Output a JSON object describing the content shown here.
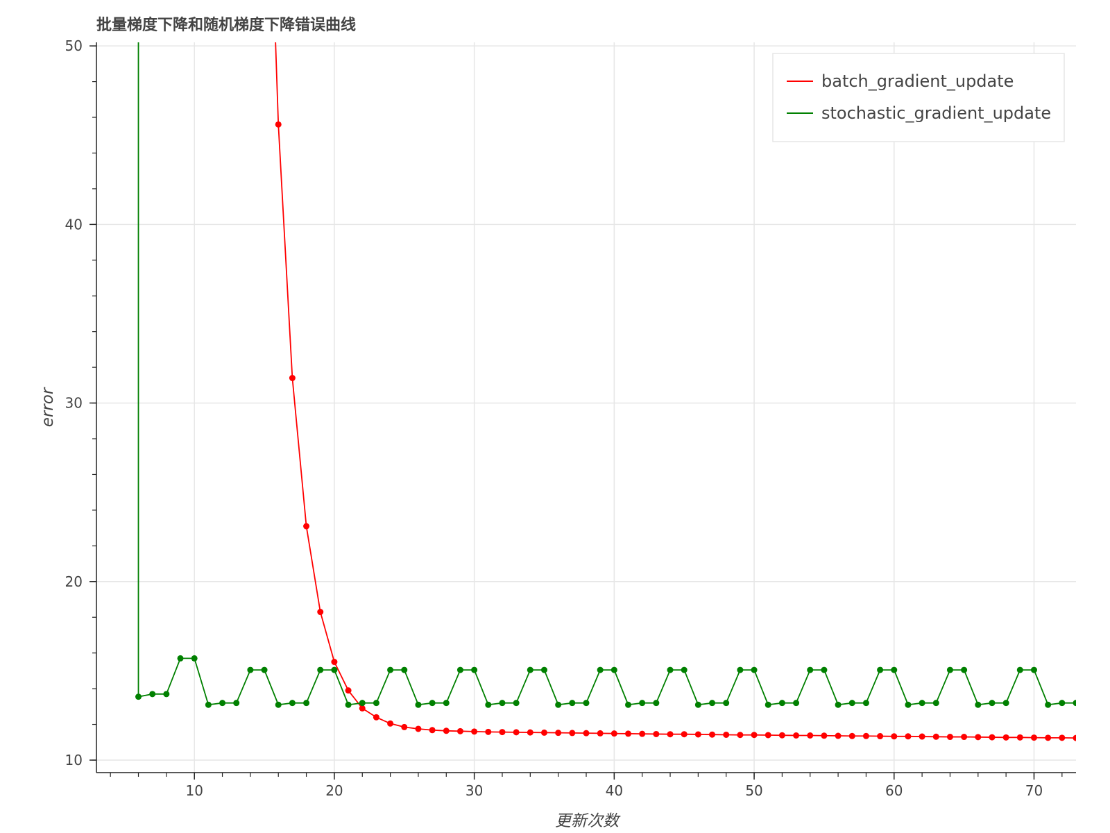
{
  "chart_data": {
    "type": "line",
    "title": "批量梯度下降和随机梯度下降错误曲线",
    "xlabel": "更新次数",
    "ylabel": "error",
    "xlim": [
      3,
      73
    ],
    "ylim": [
      9.3,
      50.2
    ],
    "xticks": [
      10,
      20,
      30,
      40,
      50,
      60,
      70
    ],
    "yticks": [
      10,
      20,
      30,
      40,
      50
    ],
    "x_minor_step": 2,
    "y_minor_step": 2,
    "grid": true,
    "legend_position": "top-right",
    "series": [
      {
        "name": "batch_gradient_update",
        "color": "#ff0000",
        "x": [
          15,
          16,
          17,
          18,
          19,
          20,
          21,
          22,
          23,
          24,
          25,
          26,
          27,
          28,
          29,
          30,
          31,
          32,
          33,
          34,
          35,
          36,
          37,
          38,
          39,
          40,
          41,
          42,
          43,
          44,
          45,
          46,
          47,
          48,
          49,
          50,
          51,
          52,
          53,
          54,
          55,
          56,
          57,
          58,
          59,
          60,
          61,
          62,
          63,
          64,
          65,
          66,
          67,
          68,
          69,
          70,
          71,
          72,
          73
        ],
        "y": [
          68.5,
          45.6,
          31.4,
          23.1,
          18.3,
          15.5,
          13.9,
          12.9,
          12.4,
          12.05,
          11.85,
          11.75,
          11.68,
          11.64,
          11.62,
          11.6,
          11.58,
          11.57,
          11.56,
          11.55,
          11.54,
          11.53,
          11.52,
          11.51,
          11.5,
          11.49,
          11.48,
          11.47,
          11.46,
          11.45,
          11.45,
          11.44,
          11.43,
          11.42,
          11.41,
          11.41,
          11.4,
          11.39,
          11.38,
          11.38,
          11.37,
          11.36,
          11.35,
          11.35,
          11.34,
          11.33,
          11.33,
          11.32,
          11.31,
          11.3,
          11.3,
          11.29,
          11.28,
          11.27,
          11.27,
          11.26,
          11.25,
          11.25,
          11.24
        ]
      },
      {
        "name": "stochastic_gradient_update",
        "color": "#008000",
        "x": [
          6,
          6,
          7,
          8,
          9,
          10,
          11,
          12,
          13,
          14,
          15,
          16,
          17,
          18,
          19,
          20,
          21,
          22,
          23,
          24,
          25,
          26,
          27,
          28,
          29,
          30,
          31,
          32,
          33,
          34,
          35,
          36,
          37,
          38,
          39,
          40,
          41,
          42,
          43,
          44,
          45,
          46,
          47,
          48,
          49,
          50,
          51,
          52,
          53,
          54,
          55,
          56,
          57,
          58,
          59,
          60,
          61,
          62,
          63,
          64,
          65,
          66,
          67,
          68,
          69,
          70,
          71,
          72,
          73
        ],
        "y": [
          55,
          13.55,
          13.7,
          13.7,
          15.7,
          15.7,
          13.1,
          13.2,
          13.2,
          15.05,
          15.05,
          13.1,
          13.2,
          13.2,
          15.05,
          15.05,
          13.1,
          13.2,
          13.2,
          15.05,
          15.05,
          13.1,
          13.2,
          13.2,
          15.05,
          15.05,
          13.1,
          13.2,
          13.2,
          15.05,
          15.05,
          13.1,
          13.2,
          13.2,
          15.05,
          15.05,
          13.1,
          13.2,
          13.2,
          15.05,
          15.05,
          13.1,
          13.2,
          13.2,
          15.05,
          15.05,
          13.1,
          13.2,
          13.2,
          15.05,
          15.05,
          13.1,
          13.2,
          13.2,
          15.05,
          15.05,
          13.1,
          13.2,
          13.2,
          15.05,
          15.05,
          13.1,
          13.2,
          13.2,
          15.05,
          15.05,
          13.1,
          13.2,
          13.2
        ],
        "marker_from_index": 1
      }
    ]
  }
}
